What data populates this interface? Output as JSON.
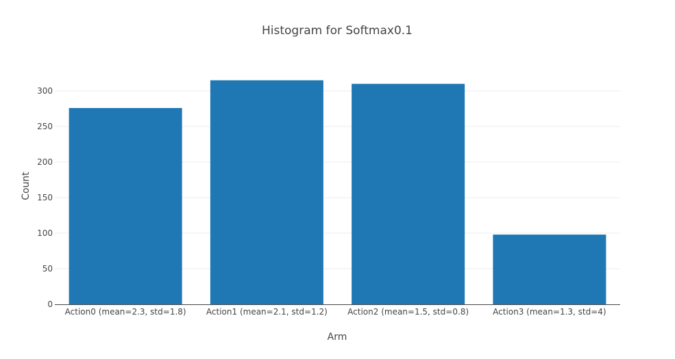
{
  "chart_data": {
    "type": "bar",
    "title": "Histogram for Softmax0.1",
    "xlabel": "Arm",
    "ylabel": "Count",
    "categories": [
      "Action0 (mean=2.3, std=1.8)",
      "Action1 (mean=2.1, std=1.2)",
      "Action2 (mean=1.5, std=0.8)",
      "Action3 (mean=1.3, std=4)"
    ],
    "values": [
      276,
      315,
      310,
      98
    ],
    "ylim": [
      0,
      330
    ],
    "yticks": [
      0,
      50,
      100,
      150,
      200,
      250,
      300
    ],
    "ytick_labels": [
      "0",
      "50",
      "100",
      "150",
      "200",
      "250",
      "300"
    ],
    "grid": true,
    "bar_color": "#1f77b4",
    "grid_color": "#eeeeee",
    "text_color": "#444444"
  }
}
